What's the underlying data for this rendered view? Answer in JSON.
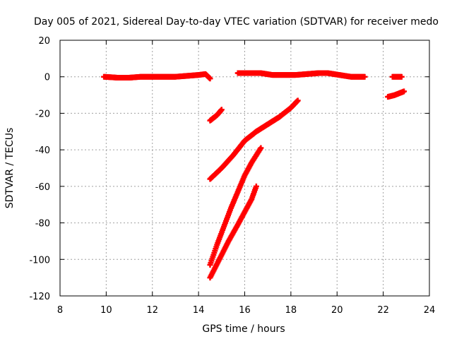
{
  "chart_data": {
    "type": "scatter",
    "title": "Day 005 of 2021, Sidereal Day-to-day VTEC variation (SDTVAR) for receiver medo",
    "xlabel": "GPS time / hours",
    "ylabel": "SDTVAR / TECUs",
    "xlim": [
      8,
      24
    ],
    "ylim": [
      -120,
      20
    ],
    "xticks": [
      8,
      10,
      12,
      14,
      16,
      18,
      20,
      22,
      24
    ],
    "yticks": [
      20,
      0,
      -20,
      -40,
      -60,
      -80,
      -100,
      -120
    ],
    "grid": true,
    "series_color": "#ff0000",
    "marker": "plus",
    "series": [
      {
        "name": "segment-a",
        "points": [
          [
            9.9,
            0
          ],
          [
            10.5,
            -0.5
          ],
          [
            11.0,
            -0.5
          ],
          [
            11.5,
            0
          ],
          [
            12.0,
            0
          ],
          [
            12.5,
            0
          ],
          [
            13.0,
            0
          ],
          [
            13.5,
            0.5
          ],
          [
            14.0,
            1
          ],
          [
            14.3,
            1.5
          ],
          [
            14.5,
            -1
          ]
        ]
      },
      {
        "name": "segment-b",
        "points": [
          [
            15.7,
            2
          ],
          [
            16.2,
            2
          ],
          [
            16.7,
            2
          ],
          [
            17.2,
            1
          ],
          [
            17.7,
            1
          ],
          [
            18.2,
            1
          ],
          [
            18.7,
            1.5
          ],
          [
            19.2,
            2
          ],
          [
            19.6,
            2
          ],
          [
            20.1,
            1
          ],
          [
            20.6,
            0
          ],
          [
            21.2,
            0
          ]
        ]
      },
      {
        "name": "segment-c",
        "points": [
          [
            22.4,
            0
          ],
          [
            22.8,
            0
          ]
        ]
      },
      {
        "name": "segment-d",
        "points": [
          [
            22.2,
            -11
          ],
          [
            22.5,
            -10
          ],
          [
            22.9,
            -8
          ]
        ]
      },
      {
        "name": "segment-e",
        "points": [
          [
            14.5,
            -24
          ],
          [
            14.8,
            -21
          ],
          [
            15.0,
            -18
          ]
        ]
      },
      {
        "name": "segment-f",
        "points": [
          [
            14.5,
            -56
          ],
          [
            15.0,
            -50
          ],
          [
            15.5,
            -43
          ],
          [
            16.0,
            -35
          ],
          [
            16.5,
            -30
          ],
          [
            17.0,
            -26
          ],
          [
            17.5,
            -22
          ],
          [
            18.0,
            -17
          ],
          [
            18.3,
            -13
          ]
        ]
      },
      {
        "name": "segment-g",
        "points": [
          [
            14.5,
            -103
          ],
          [
            14.8,
            -92
          ],
          [
            15.1,
            -82
          ],
          [
            15.4,
            -72
          ],
          [
            15.7,
            -63
          ],
          [
            16.0,
            -54
          ],
          [
            16.3,
            -47
          ],
          [
            16.7,
            -39
          ]
        ]
      },
      {
        "name": "segment-h",
        "points": [
          [
            14.5,
            -110
          ],
          [
            14.9,
            -100
          ],
          [
            15.3,
            -90
          ],
          [
            15.7,
            -81
          ],
          [
            16.0,
            -74
          ],
          [
            16.3,
            -67
          ],
          [
            16.5,
            -60
          ]
        ]
      }
    ]
  }
}
